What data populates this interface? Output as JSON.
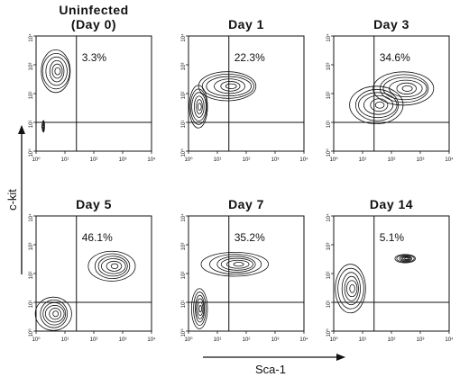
{
  "chart_data": {
    "type": "contour",
    "xlabel": "Sca-1",
    "ylabel": "c-kit",
    "scale": "log",
    "xlim": [
      1,
      10000
    ],
    "ylim": [
      1,
      10000
    ],
    "tick_labels": [
      "10⁰",
      "10¹",
      "10²",
      "10³",
      "10⁴"
    ],
    "gate": {
      "x": 25,
      "y": 10
    },
    "panels": [
      {
        "title_line1": "Uninfected",
        "title_line2": "(Day 0)",
        "percent": "3.3%",
        "contours": [
          {
            "cx": 1.8,
            "cy": 7.3,
            "rx": 0.7,
            "ry": 1.6
          },
          {
            "cx": 4.8,
            "cy": 600,
            "rx": 3.4,
            "ry": 5.5
          }
        ]
      },
      {
        "title_line1": "Day 1",
        "title_line2": "",
        "percent": "22.3%",
        "contours": [
          {
            "cx": 22,
            "cy": 180,
            "rx": 12,
            "ry": 3.2
          },
          {
            "cx": 2.2,
            "cy": 35,
            "rx": 2.2,
            "ry": 5.5
          }
        ]
      },
      {
        "title_line1": "Day 3",
        "title_line2": "",
        "percent": "34.6%",
        "contours": [
          {
            "cx": 260,
            "cy": 150,
            "rx": 12,
            "ry": 3.8
          },
          {
            "cx": 30,
            "cy": 40,
            "rx": 9,
            "ry": 4.5
          }
        ]
      },
      {
        "title_line1": "Day 5",
        "title_line2": "",
        "percent": "46.1%",
        "contours": [
          {
            "cx": 420,
            "cy": 180,
            "rx": 6,
            "ry": 3.3
          },
          {
            "cx": 4,
            "cy": 4,
            "rx": 4,
            "ry": 3.8
          }
        ]
      },
      {
        "title_line1": "Day 7",
        "title_line2": "",
        "percent": "35.2%",
        "contours": [
          {
            "cx": 40,
            "cy": 210,
            "rx": 12,
            "ry": 2.6
          },
          {
            "cx": 2.4,
            "cy": 6,
            "rx": 1.8,
            "ry": 5
          }
        ]
      },
      {
        "title_line1": "Day 14",
        "title_line2": "",
        "percent": "5.1%",
        "contours": [
          {
            "cx": 3.8,
            "cy": 30,
            "rx": 3.2,
            "ry": 7
          },
          {
            "cx": 300,
            "cy": 330,
            "rx": 2.2,
            "ry": 1.4
          }
        ]
      }
    ]
  }
}
